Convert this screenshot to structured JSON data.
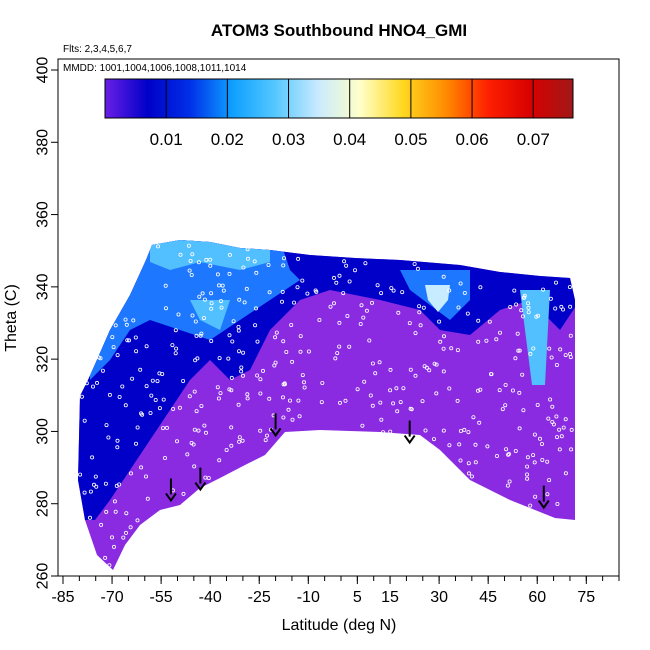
{
  "chart_data": {
    "type": "heatmap",
    "title": "ATOM3 Southbound HNO4_GMI",
    "flights_label": "Flts: 2,3,4,5,6,7",
    "mmdd_label": "MMDD: 1001,1004,1006,1008,1011,1014",
    "xlabel": "Latitude (deg N)",
    "ylabel": "Theta (C)",
    "xlim": [
      -85,
      85
    ],
    "ylim": [
      260,
      400
    ],
    "x_ticks": [
      -85,
      -70,
      -55,
      -40,
      -25,
      -10,
      5,
      15,
      30,
      45,
      60,
      75
    ],
    "y_ticks": [
      260,
      280,
      300,
      320,
      340,
      360,
      380,
      400
    ],
    "colorbar": {
      "range": [
        0,
        0.0765
      ],
      "tick_values": [
        0.01,
        0.02,
        0.03,
        0.04,
        0.05,
        0.06,
        0.07
      ],
      "tick_labels": [
        "0.01",
        "0.02",
        "0.03",
        "0.04",
        "0.05",
        "0.06",
        "0.07"
      ],
      "stops": [
        "#6a1fe6",
        "#0000c8",
        "#0030e8",
        "#0fa0ff",
        "#55c8ff",
        "#c8eaff",
        "#ffffc8",
        "#ffd820",
        "#ff8c00",
        "#ff2000",
        "#d80000",
        "#a01818"
      ]
    },
    "field_colors": {
      "low": "#8a2be2",
      "mid_low": "#0000c8",
      "mid": "#1e78ff",
      "high": "#52bfff",
      "highest": "#c8ecff"
    },
    "arrow_markers": [
      {
        "lat": -52,
        "theta": 287
      },
      {
        "lat": -43,
        "theta": 290
      },
      {
        "lat": -20,
        "theta": 305
      },
      {
        "lat": 21,
        "theta": 303
      },
      {
        "lat": 62,
        "theta": 285
      }
    ]
  }
}
